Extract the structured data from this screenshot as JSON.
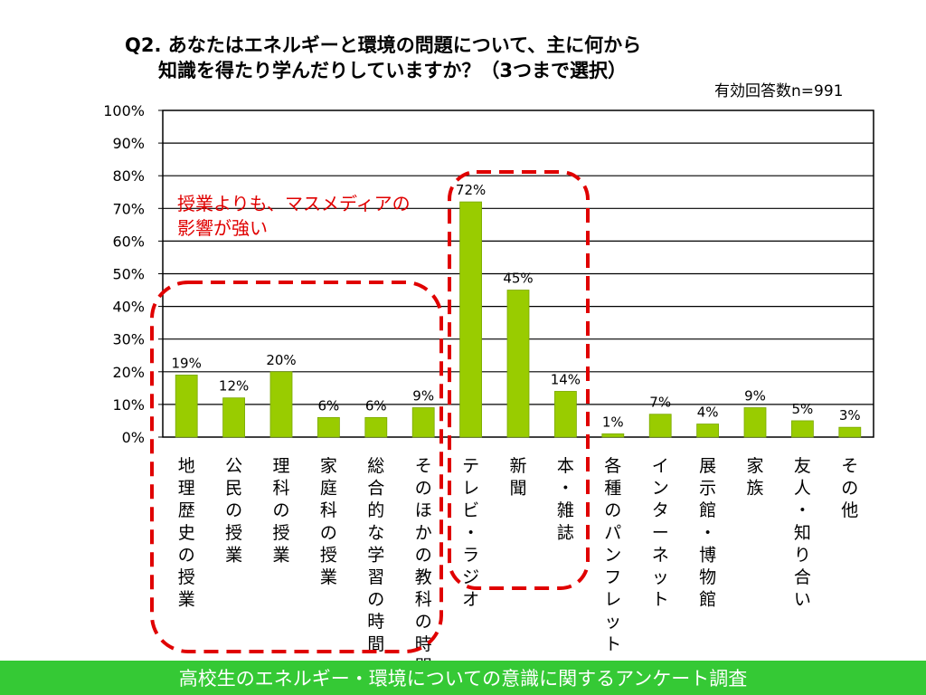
{
  "slide": {
    "title_line1": "Q2. あなたはエネルギーと環境の問題について、主に何から",
    "title_line2": "知識を得たり学んだりしていますか？（3つまで選択）",
    "sample_size": "有効回答数n=991",
    "callout": [
      "授業よりも、マスメディアの",
      "影響が強い"
    ],
    "footer": "高校生のエネルギー・環境についての意識に関するアンケート調査"
  },
  "colors": {
    "bar": "#99cc00",
    "bar_edge": "#7aa800",
    "gridline": "#000000",
    "highlight_box": "#e00000",
    "callout_text": "#e00000",
    "footer_bg": "#35c935"
  },
  "chart_data": {
    "type": "bar",
    "categories": [
      "地理歴史の授業",
      "公民の授業",
      "理科の授業",
      "家庭科の授業",
      "総合的な学習の時間",
      "そのほかの教科の時間",
      "テレビ・ラジオ",
      "新聞",
      "本・雑誌",
      "各種のパンフレット",
      "インターネット",
      "展示館・博物館",
      "家族",
      "友人・知り合い",
      "その他"
    ],
    "values": [
      19,
      12,
      20,
      6,
      6,
      9,
      72,
      45,
      14,
      1,
      7,
      4,
      9,
      5,
      3
    ],
    "value_labels": [
      "19%",
      "12%",
      "20%",
      "6%",
      "6%",
      "9%",
      "72%",
      "45%",
      "14%",
      "1%",
      "7%",
      "4%",
      "9%",
      "5%",
      "3%"
    ],
    "ylim": [
      0,
      100
    ],
    "yticks": [
      "0%",
      "10%",
      "20%",
      "30%",
      "40%",
      "50%",
      "60%",
      "70%",
      "80%",
      "90%",
      "100%"
    ],
    "grid": true,
    "legend": "none",
    "highlights": [
      {
        "from_category": 0,
        "to_category": 5,
        "style": "dashed-rounded"
      },
      {
        "from_category": 6,
        "to_category": 8,
        "style": "dashed-rounded"
      }
    ]
  }
}
